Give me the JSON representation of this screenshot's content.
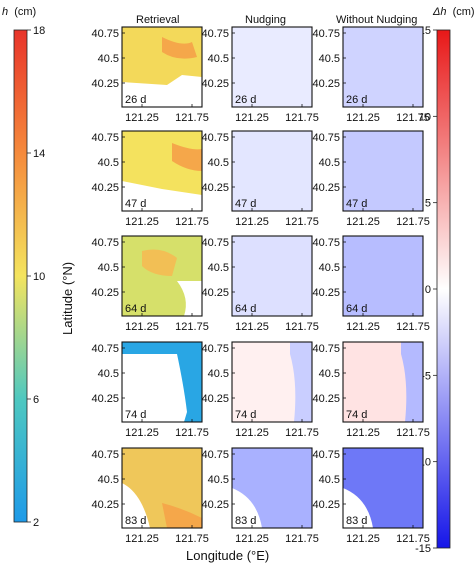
{
  "chart_data": {
    "type": "heatmap",
    "column_titles": [
      "Retrieval",
      "Nudging",
      "Without Nudging"
    ],
    "xlabel": "Longitude (°E)",
    "ylabel": "Latitude (°N)",
    "x_ticks": [
      "121.25",
      "121.75"
    ],
    "y_ticks": [
      "40.75",
      "40.5",
      "40.25"
    ],
    "xlim": [
      121.0,
      121.8
    ],
    "ylim": [
      40.1,
      40.85
    ],
    "panel_labels": [
      "26 d",
      "47 d",
      "64 d",
      "74 d",
      "83 d"
    ],
    "colorbar_h": {
      "label_var": "h",
      "label_unit": "(cm)",
      "ticks": [
        "18",
        "14",
        "10",
        "6",
        "2"
      ],
      "range": [
        2,
        18
      ]
    },
    "colorbar_dh": {
      "label_var": "Δh",
      "label_unit": "(cm)",
      "ticks": [
        "15",
        "10",
        "5",
        "0",
        "-5",
        "-10",
        "-15"
      ],
      "range": [
        -15,
        15
      ]
    },
    "rows": [
      {
        "day": "26 d",
        "retrieval_h_typical": 12,
        "nudging_dh_typical": -1,
        "without_nudging_dh_typical": -3
      },
      {
        "day": "47 d",
        "retrieval_h_typical": 12,
        "nudging_dh_typical": -2,
        "without_nudging_dh_typical": -4
      },
      {
        "day": "64 d",
        "retrieval_h_typical": 11,
        "nudging_dh_typical": -2,
        "without_nudging_dh_typical": -5
      },
      {
        "day": "74 d",
        "retrieval_h_typical": 5,
        "nudging_dh_typical": 0,
        "without_nudging_dh_typical": 1
      },
      {
        "day": "83 d",
        "retrieval_h_typical": 11,
        "nudging_dh_typical": -6,
        "without_nudging_dh_typical": -9
      }
    ]
  }
}
